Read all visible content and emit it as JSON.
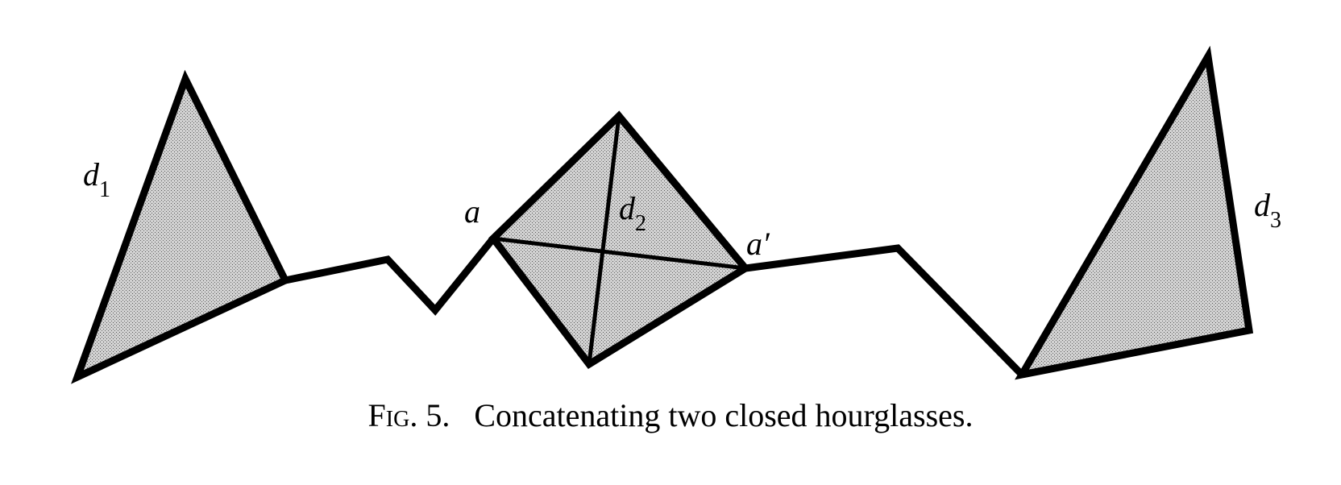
{
  "figure": {
    "labels": {
      "d1": {
        "letter": "d",
        "sub": "1"
      },
      "d2": {
        "letter": "d",
        "sub": "2"
      },
      "d3": {
        "letter": "d",
        "sub": "3"
      },
      "a": "a",
      "a_prime": "a′"
    },
    "caption": {
      "fig": "Fig.",
      "number": "5.",
      "text": "Concatenating two closed hourglasses."
    },
    "colors": {
      "fill": "#c4c4c4",
      "stroke": "#000000"
    }
  }
}
